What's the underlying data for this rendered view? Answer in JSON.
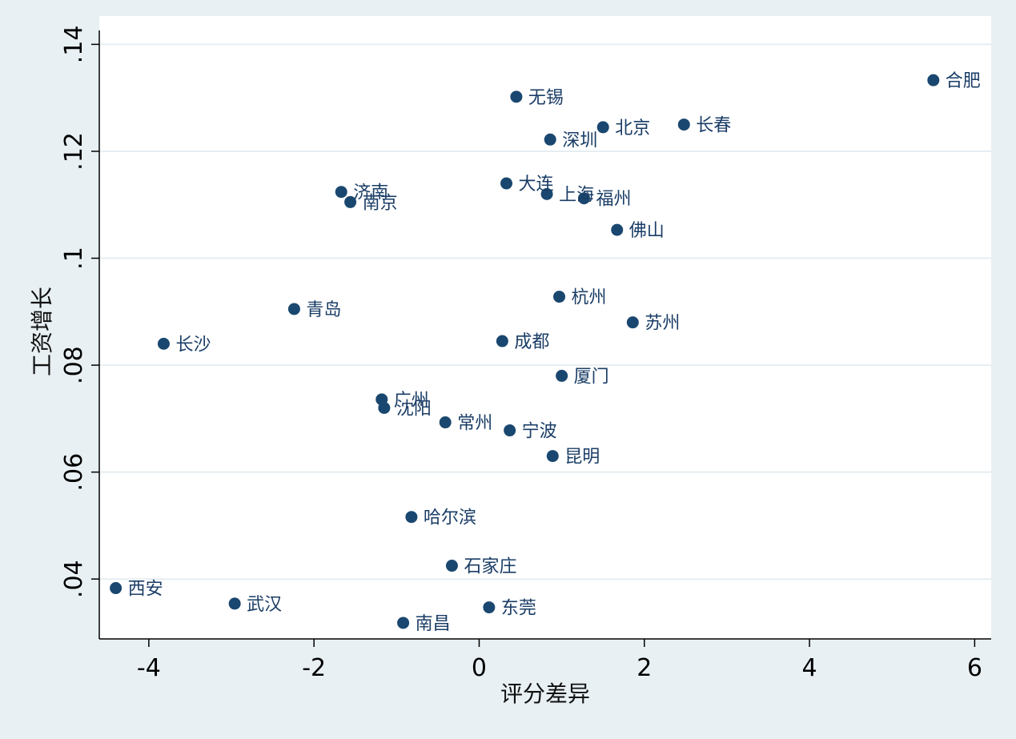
{
  "chart_data": {
    "type": "scatter",
    "xlabel": "评分差异",
    "ylabel": "工资增长",
    "xlim": [
      -4.6,
      6.2
    ],
    "ylim": [
      0.0288,
      0.1453
    ],
    "x_ticks": [
      -4,
      -2,
      0,
      2,
      4,
      6
    ],
    "x_tick_labels": [
      "-4",
      "-2",
      "0",
      "2",
      "4",
      "6"
    ],
    "y_ticks": [
      0.04,
      0.06,
      0.08,
      0.1,
      0.12,
      0.14
    ],
    "y_tick_labels": [
      ".04",
      ".06",
      ".08",
      ".1",
      ".12",
      ".14"
    ],
    "grid": true,
    "marker_color": "#1a476f",
    "label_color": "#1a3d66",
    "background": "#e8f0f3",
    "plot_background": "#ffffff",
    "grid_color": "#e5eef2",
    "points": [
      {
        "label": "合肥",
        "x": 5.5,
        "y": 0.1333
      },
      {
        "label": "无锡",
        "x": 0.45,
        "y": 0.1302
      },
      {
        "label": "北京",
        "x": 1.5,
        "y": 0.1245
      },
      {
        "label": "长春",
        "x": 2.48,
        "y": 0.125
      },
      {
        "label": "深圳",
        "x": 0.86,
        "y": 0.1222
      },
      {
        "label": "大连",
        "x": 0.33,
        "y": 0.114
      },
      {
        "label": "济南",
        "x": -1.67,
        "y": 0.1124
      },
      {
        "label": "南京",
        "x": -1.56,
        "y": 0.1105
      },
      {
        "label": "上海",
        "x": 0.82,
        "y": 0.112
      },
      {
        "label": "福州",
        "x": 1.27,
        "y": 0.1112
      },
      {
        "label": "佛山",
        "x": 1.67,
        "y": 0.1053
      },
      {
        "label": "杭州",
        "x": 0.97,
        "y": 0.0928
      },
      {
        "label": "青岛",
        "x": -2.24,
        "y": 0.0905
      },
      {
        "label": "苏州",
        "x": 1.86,
        "y": 0.088
      },
      {
        "label": "长沙",
        "x": -3.82,
        "y": 0.084
      },
      {
        "label": "成都",
        "x": 0.28,
        "y": 0.0845
      },
      {
        "label": "厦门",
        "x": 1.0,
        "y": 0.078
      },
      {
        "label": "广州",
        "x": -1.18,
        "y": 0.0736
      },
      {
        "label": "沈阳",
        "x": -1.15,
        "y": 0.072
      },
      {
        "label": "常州",
        "x": -0.41,
        "y": 0.0693
      },
      {
        "label": "宁波",
        "x": 0.37,
        "y": 0.0678
      },
      {
        "label": "昆明",
        "x": 0.89,
        "y": 0.063
      },
      {
        "label": "哈尔滨",
        "x": -0.82,
        "y": 0.0516
      },
      {
        "label": "石家庄",
        "x": -0.33,
        "y": 0.0425
      },
      {
        "label": "西安",
        "x": -4.4,
        "y": 0.0383
      },
      {
        "label": "武汉",
        "x": -2.96,
        "y": 0.0354
      },
      {
        "label": "东莞",
        "x": 0.12,
        "y": 0.0347
      },
      {
        "label": "南昌",
        "x": -0.92,
        "y": 0.0318
      }
    ]
  }
}
